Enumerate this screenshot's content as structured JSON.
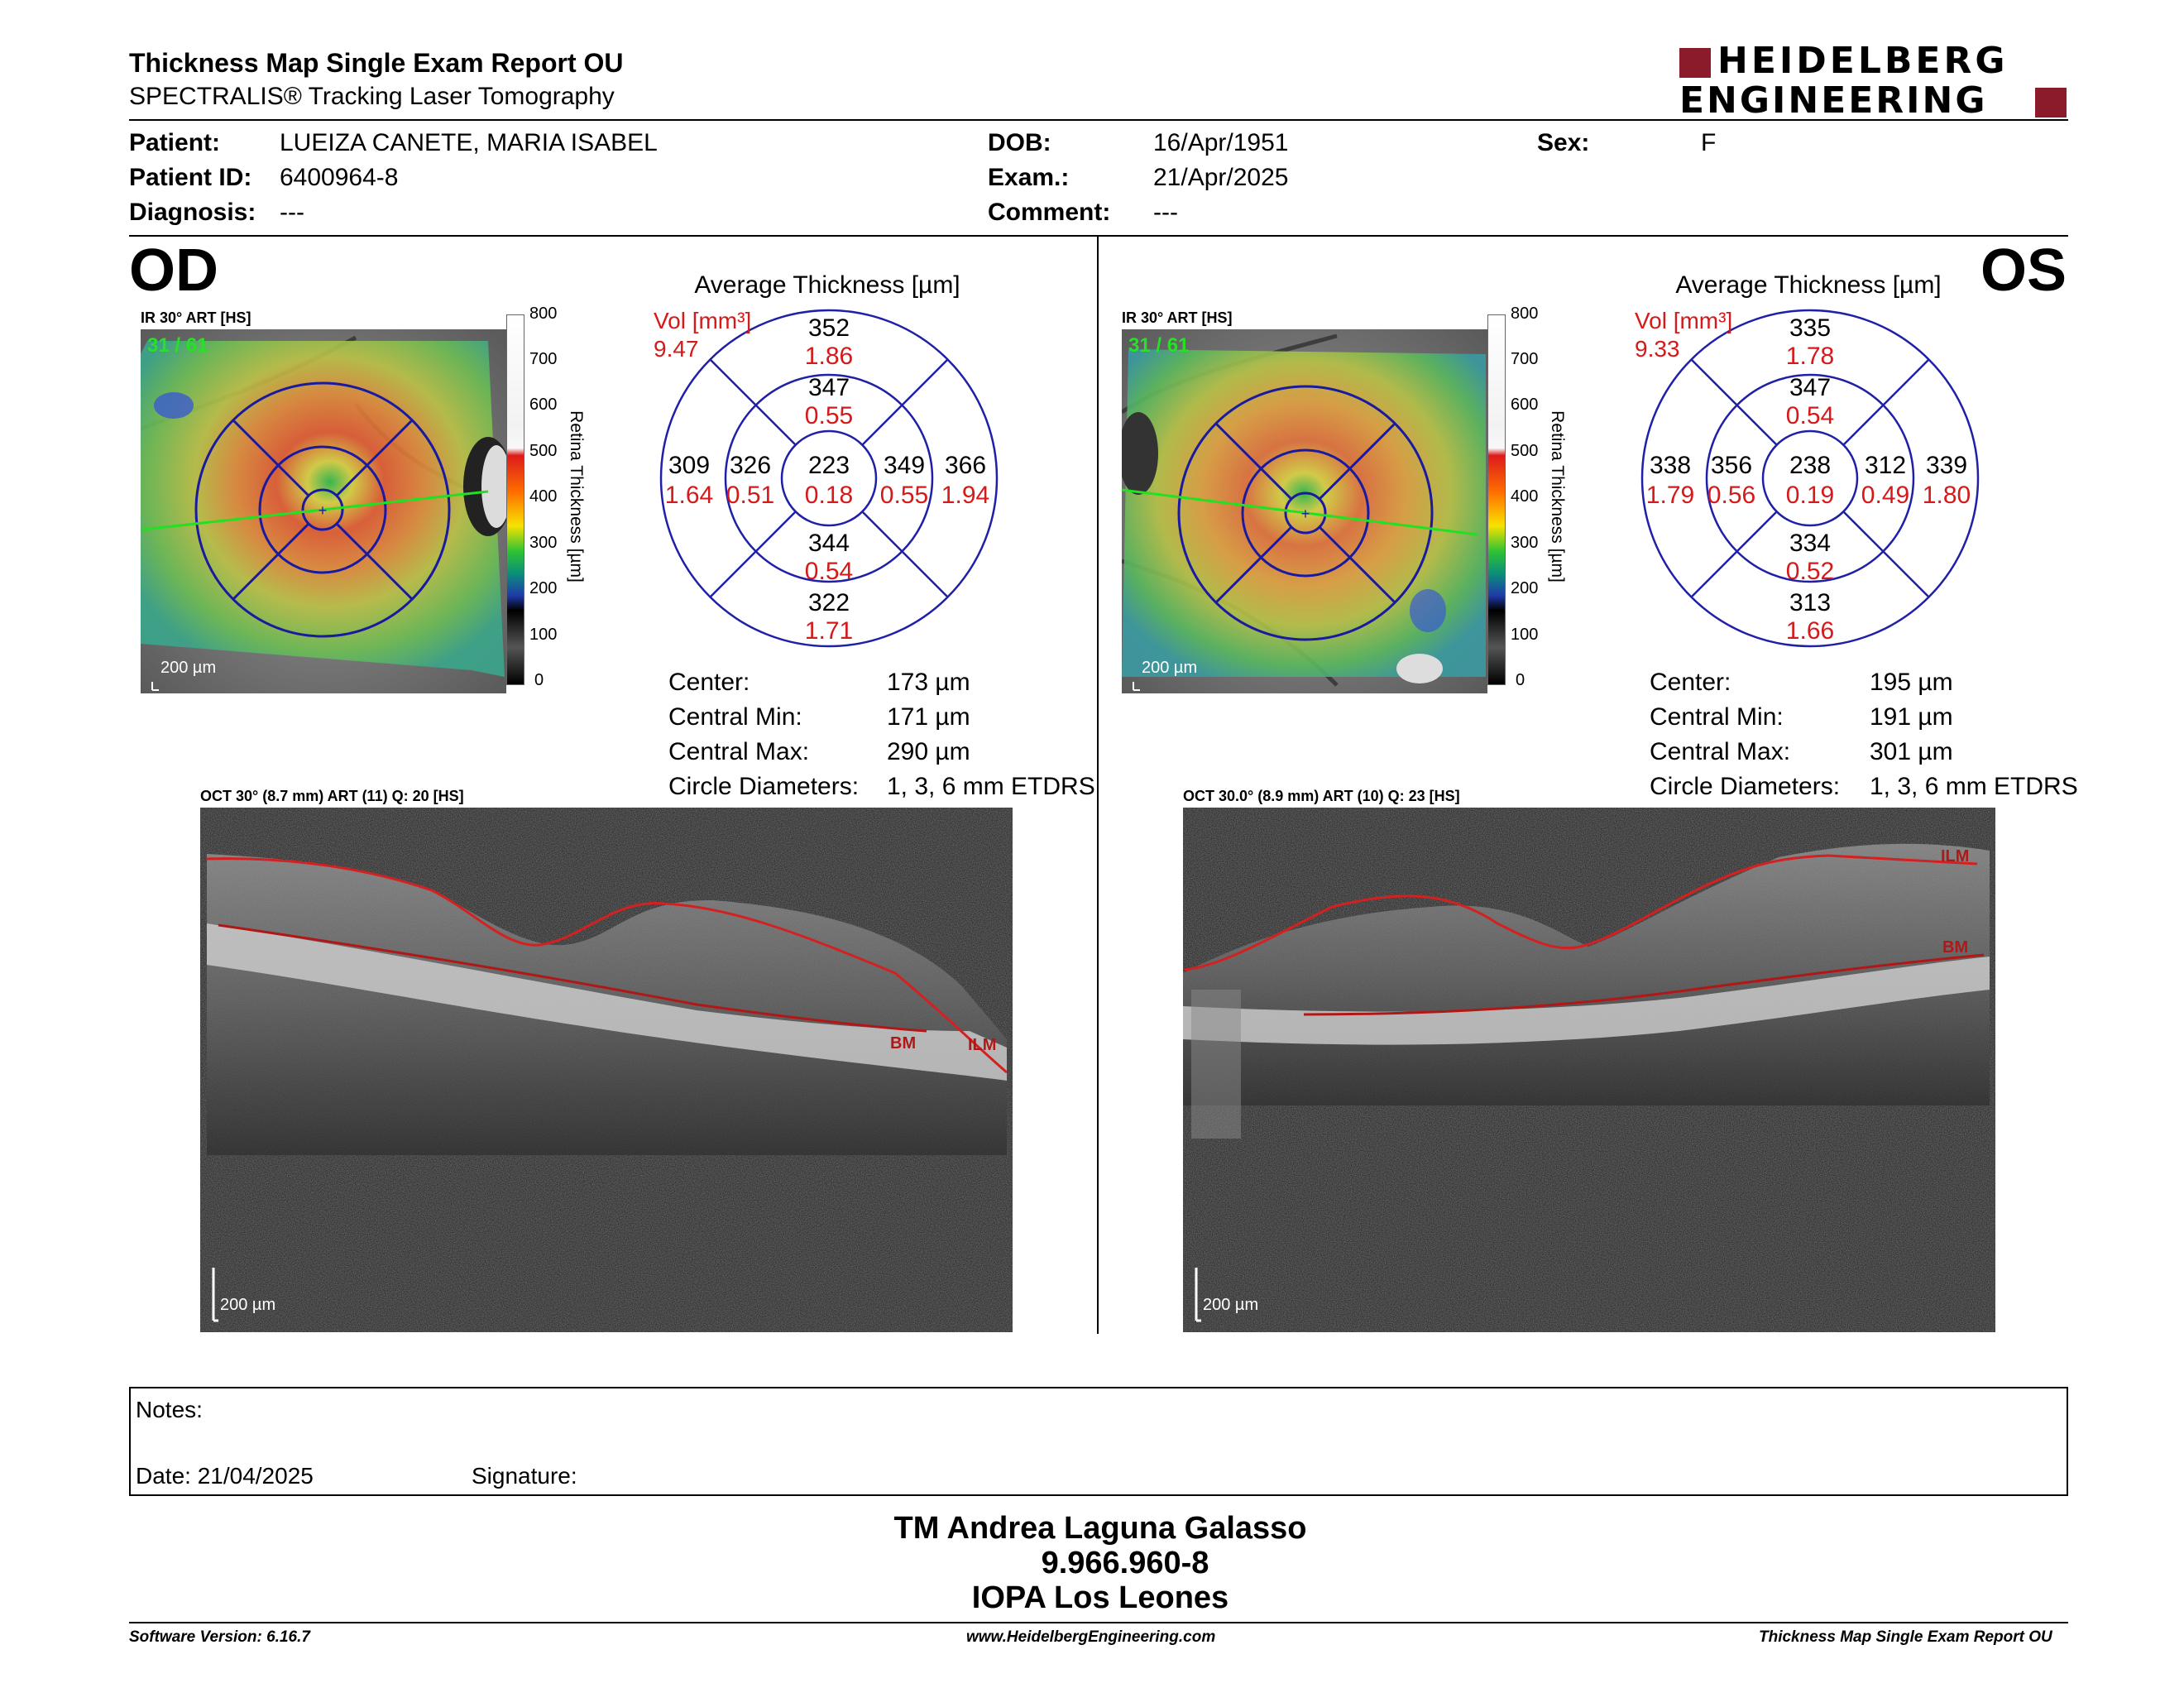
{
  "header": {
    "title": "Thickness Map Single Exam Report OU",
    "subtitle": "SPECTRALIS® Tracking Laser Tomography",
    "logo_line1": "HEIDELBERG",
    "logo_line2": "ENGINEERING",
    "logo_color": "#8b1a2b"
  },
  "patient": {
    "patient_label": "Patient:",
    "patient_value": "LUEIZA CANETE, MARIA ISABEL",
    "id_label": "Patient ID:",
    "id_value": "6400964-8",
    "diagnosis_label": "Diagnosis:",
    "diagnosis_value": "---",
    "dob_label": "DOB:",
    "dob_value": "16/Apr/1951",
    "exam_label": "Exam.:",
    "exam_value": "21/Apr/2025",
    "comment_label": "Comment:",
    "comment_value": "---",
    "sex_label": "Sex:",
    "sex_value": "F"
  },
  "od": {
    "eye_label": "OD",
    "ir_label": "IR 30° ART [HS]",
    "ir_frames": "31 / 61",
    "scale_text": "200 µm",
    "avg_title": "Average Thickness [µm]",
    "vol_label": "Vol [mm³]",
    "vol_value": "9.47",
    "grid": {
      "outer_top": "352",
      "outer_top_vol": "1.86",
      "inner_top": "347",
      "inner_top_vol": "0.55",
      "outer_left": "309",
      "outer_left_vol": "1.64",
      "inner_left": "326",
      "inner_left_vol": "0.51",
      "center": "223",
      "center_vol": "0.18",
      "inner_right": "349",
      "inner_right_vol": "0.55",
      "outer_right": "366",
      "outer_right_vol": "1.94",
      "inner_bottom": "344",
      "inner_bottom_vol": "0.54",
      "outer_bottom": "322",
      "outer_bottom_vol": "1.71"
    },
    "stats": [
      {
        "label": "Center:",
        "value": "173 µm"
      },
      {
        "label": "Central Min:",
        "value": "171 µm"
      },
      {
        "label": "Central Max:",
        "value": "290 µm"
      },
      {
        "label": "Circle Diameters:",
        "value": "1, 3, 6 mm ETDRS"
      }
    ],
    "oct_label": "OCT 30° (8.7 mm) ART (11) Q: 20 [HS]",
    "bm_label": "BM",
    "ilm_label": "ILM",
    "oct_scale": "200 µm"
  },
  "os": {
    "eye_label": "OS",
    "ir_label": "IR 30° ART [HS]",
    "ir_frames": "31 / 61",
    "scale_text": "200 µm",
    "avg_title": "Average Thickness [µm]",
    "vol_label": "Vol [mm³]",
    "vol_value": "9.33",
    "grid": {
      "outer_top": "335",
      "outer_top_vol": "1.78",
      "inner_top": "347",
      "inner_top_vol": "0.54",
      "outer_left": "338",
      "outer_left_vol": "1.79",
      "inner_left": "356",
      "inner_left_vol": "0.56",
      "center": "238",
      "center_vol": "0.19",
      "inner_right": "312",
      "inner_right_vol": "0.49",
      "outer_right": "339",
      "outer_right_vol": "1.80",
      "inner_bottom": "334",
      "inner_bottom_vol": "0.52",
      "outer_bottom": "313",
      "outer_bottom_vol": "1.66"
    },
    "stats": [
      {
        "label": "Center:",
        "value": "195 µm"
      },
      {
        "label": "Central Min:",
        "value": "191 µm"
      },
      {
        "label": "Central Max:",
        "value": "301 µm"
      },
      {
        "label": "Circle Diameters:",
        "value": "1, 3, 6 mm ETDRS"
      }
    ],
    "oct_label": "OCT 30.0° (8.9 mm) ART (10) Q: 23 [HS]",
    "bm_label": "BM",
    "ilm_label": "ILM",
    "oct_scale": "200 µm"
  },
  "colorbar": {
    "ticks": [
      "800",
      "700",
      "600",
      "500",
      "400",
      "300",
      "200",
      "100",
      "0"
    ],
    "title": "Retina  Thickness [µm]"
  },
  "notes": {
    "notes_label": "Notes:",
    "date_label": "Date: 21/04/2025",
    "signature_label": "Signature:"
  },
  "signature_block": {
    "name": "TM Andrea Laguna Galasso",
    "id": "9.966.960-8",
    "institution": "IOPA Los Leones"
  },
  "footer": {
    "software": "Software Version: 6.16.7",
    "website": "www.HeidelbergEngineering.com",
    "report": "Thickness Map Single Exam Report OU"
  },
  "colors": {
    "grid_blue": "#1f1fa8",
    "volume_red": "#d41a1a",
    "segmentation_red": "#d42020"
  }
}
